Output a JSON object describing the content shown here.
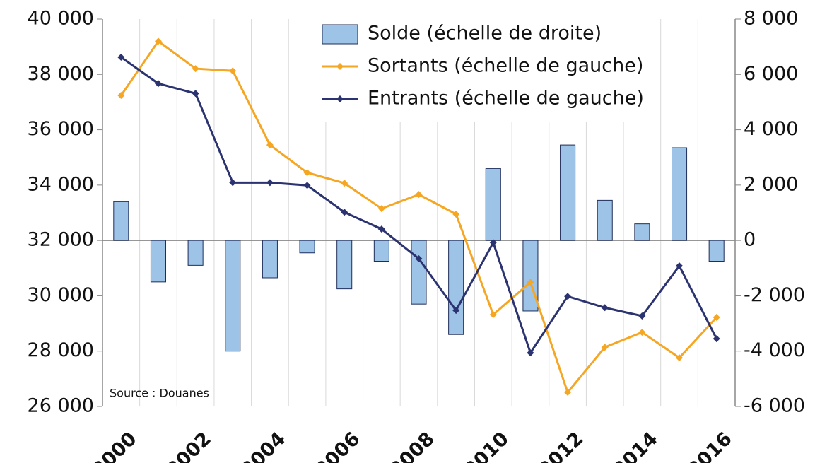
{
  "chart_data": {
    "type": "bar",
    "categories": [
      "2000",
      null,
      "2002",
      null,
      "2004",
      null,
      "2006",
      null,
      "2008",
      null,
      "2010",
      null,
      "2012",
      null,
      "2014",
      null,
      "2016"
    ],
    "series": [
      {
        "name": "Solde (échelle de droite)",
        "type": "bar",
        "axis": "y2",
        "color": "#9dc3e6",
        "values": [
          1400,
          -1500,
          -900,
          -4000,
          -1350,
          -450,
          -1750,
          -750,
          -2300,
          -3400,
          2600,
          -2550,
          3450,
          1450,
          600,
          3350,
          -750
        ]
      },
      {
        "name": "Sortants (échelle de gauche)",
        "type": "line",
        "color": "#f5a623",
        "values": [
          37240,
          39200,
          38210,
          38130,
          35450,
          34450,
          34070,
          33150,
          33660,
          32950,
          29320,
          30490,
          26510,
          28140,
          28680,
          27760,
          29220
        ]
      },
      {
        "name": "Entrants (échelle de gauche)",
        "type": "line",
        "color": "#2b3370",
        "values": [
          38620,
          37670,
          37310,
          34090,
          34090,
          33990,
          33020,
          32410,
          31340,
          29470,
          31920,
          27940,
          29980,
          29570,
          29270,
          31080,
          28450
        ]
      }
    ],
    "ylim": [
      26000,
      40000
    ],
    "yticks": [
      {
        "value": 26000,
        "label": "26 000"
      },
      {
        "value": 28000,
        "label": "28 000"
      },
      {
        "value": 30000,
        "label": "30 000"
      },
      {
        "value": 32000,
        "label": "32 000"
      },
      {
        "value": 34000,
        "label": "34 000"
      },
      {
        "value": 36000,
        "label": "36 000"
      },
      {
        "value": 38000,
        "label": "38 000"
      },
      {
        "value": 40000,
        "label": "40 000"
      }
    ],
    "y2lim": [
      -6000,
      8000
    ],
    "y2ticks": [
      {
        "value": -6000,
        "label": "-6 000"
      },
      {
        "value": -4000,
        "label": "-4 000"
      },
      {
        "value": -2000,
        "label": "-2 000"
      },
      0,
      {
        "value": 2000,
        "label": "2 000"
      },
      {
        "value": 4000,
        "label": "4 000"
      },
      {
        "value": 6000,
        "label": "6 000"
      },
      {
        "value": 8000,
        "label": "8 000"
      }
    ],
    "annotation": "Source : Douanes",
    "legend": "top"
  }
}
